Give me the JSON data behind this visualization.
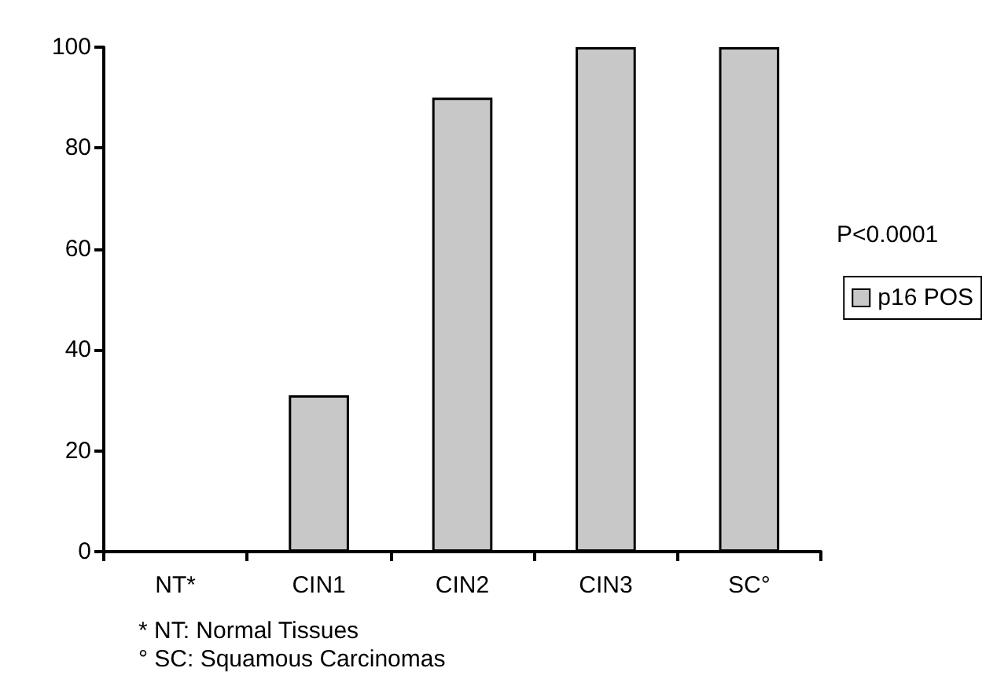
{
  "chart_data": {
    "type": "bar",
    "categories": [
      "NT*",
      "CIN1",
      "CIN2",
      "CIN3",
      "SC°"
    ],
    "series": [
      {
        "name": "p16 POS",
        "color": "#c8c8c8",
        "values": [
          0,
          31,
          90,
          100,
          100
        ]
      }
    ],
    "ylim": [
      0,
      100
    ],
    "yticks": [
      0,
      20,
      40,
      60,
      80,
      100
    ],
    "grid": false,
    "legend": "right",
    "annotations": [
      "P<0.0001",
      "* NT: Normal Tissues",
      "° SC: Squamous Carcinomas"
    ]
  }
}
